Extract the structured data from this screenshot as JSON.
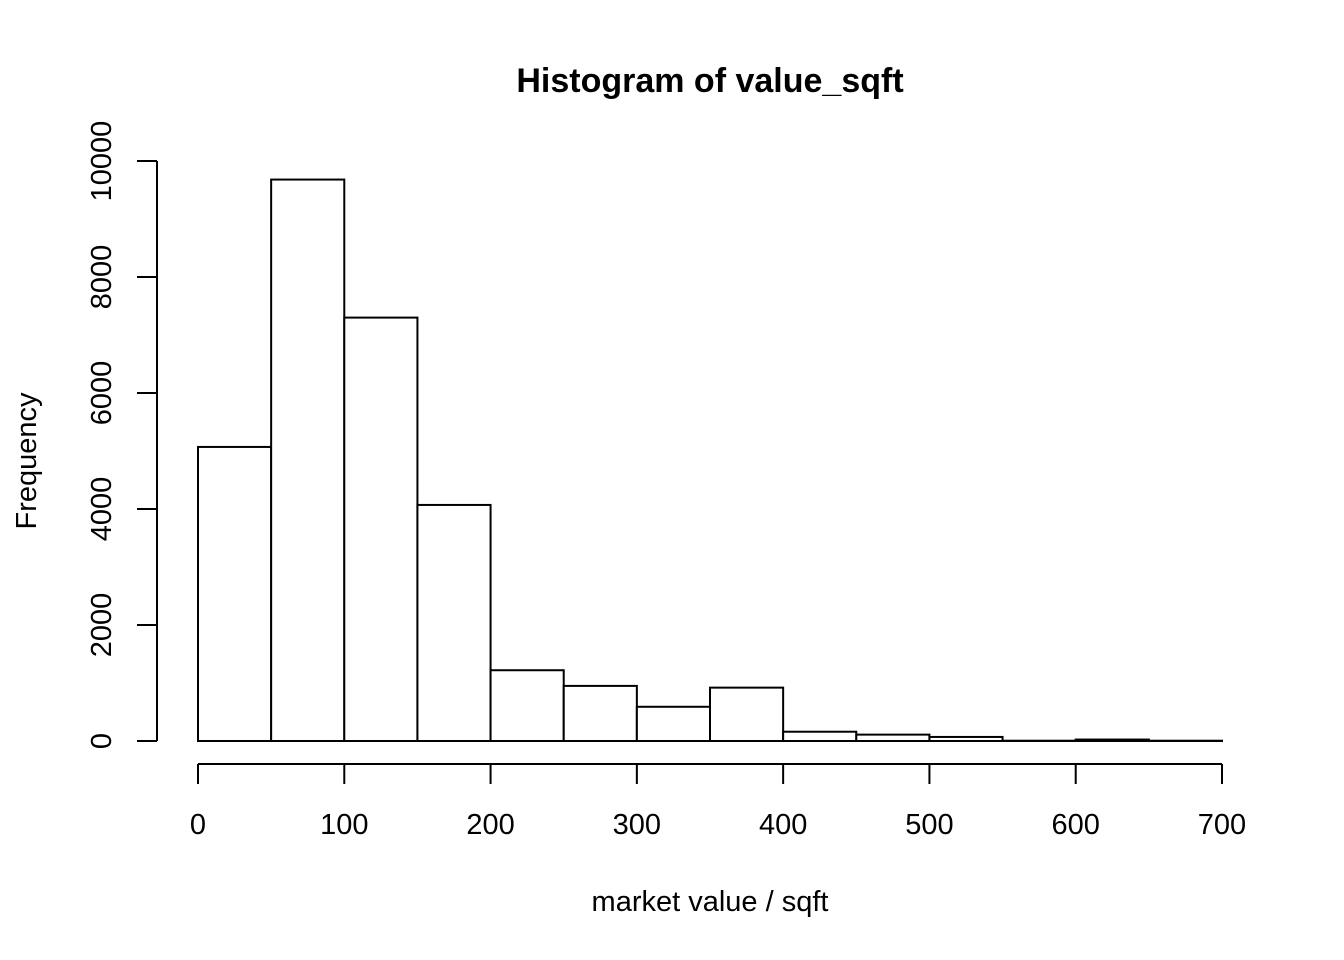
{
  "chart_data": {
    "type": "bar",
    "subtype": "histogram",
    "title": "Histogram of value_sqft",
    "xlabel": "market value / sqft",
    "ylabel": "Frequency",
    "bin_edges": [
      0,
      50,
      100,
      150,
      200,
      250,
      300,
      350,
      400,
      450,
      500,
      550,
      600,
      650,
      700
    ],
    "values": [
      5070,
      9680,
      7300,
      4070,
      1220,
      950,
      590,
      920,
      160,
      110,
      70,
      5,
      25,
      5
    ],
    "xlim": [
      0,
      700
    ],
    "ylim": [
      0,
      10000
    ],
    "x_ticks": [
      0,
      100,
      200,
      300,
      400,
      500,
      600,
      700
    ],
    "x_tick_labels": [
      "0",
      "100",
      "200",
      "300",
      "400",
      "500",
      "600",
      "700"
    ],
    "y_ticks": [
      0,
      2000,
      4000,
      6000,
      8000,
      10000
    ],
    "y_tick_labels": [
      "0",
      "2000",
      "4000",
      "6000",
      "8000",
      "10000"
    ],
    "grid": false,
    "legend": "none",
    "bar_fill": "#ffffff",
    "bar_stroke": "#000000"
  }
}
